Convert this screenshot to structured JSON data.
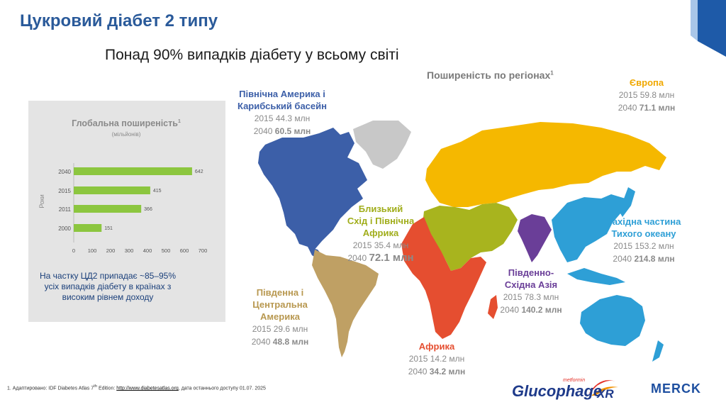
{
  "title": "Цукровий діабет 2 типу",
  "subtitle": "Понад 90% випадків діабету у всьому світі",
  "regions_title": "Поширеність по регіонах",
  "regions_title_sup": "1",
  "chart_data": {
    "type": "bar",
    "orientation": "horizontal",
    "title": "Глобальна поширеність",
    "title_sup": "1",
    "subtitle": "(мільйонів)",
    "ylabel": "Роки",
    "categories": [
      "2040",
      "2015",
      "2011",
      "2000"
    ],
    "values": [
      642,
      415,
      366,
      151
    ],
    "xlim": [
      0,
      700
    ],
    "xticks": [
      "0",
      "100",
      "200",
      "300",
      "400",
      "500",
      "600",
      "700"
    ],
    "bar_color": "#8cc63f"
  },
  "note": "На частку ЦД2 припадає ~85–95% усіх випадків діабету в країнах з високим рівнем доходу",
  "regions": {
    "north_america": {
      "name_line1": "Північна Америка і",
      "name_line2": "Карибський басейн",
      "y2015": "2015 44.3 млн",
      "y2040_prefix": "2040",
      "y2040_value": "60.5 млн",
      "color": "#3c5fa8"
    },
    "europe": {
      "name_line1": "Європа",
      "y2015": "2015 59.8 млн",
      "y2040_prefix": "2040",
      "y2040_value": "71.1 млн",
      "color": "#f5b800"
    },
    "middle_east": {
      "name_line1": "Близький",
      "name_line2": "Схід і Північна",
      "name_line3": "Африка",
      "y2015": "2015 35.4 млн",
      "y2040_prefix": "2040",
      "y2040_value": "72.1 млн",
      "color": "#a8b41e"
    },
    "western_pacific": {
      "name_line1": "Західна частина",
      "name_line2": "Тихого океану",
      "y2015": "2015 153.2 млн",
      "y2040_prefix": "2040",
      "y2040_value": "214.8 млн",
      "color": "#2e9fd6"
    },
    "south_east_asia": {
      "name_line1": "Південно-",
      "name_line2": "Східна Азія",
      "y2015": "2015 78.3 млн",
      "y2040_prefix": "2040",
      "y2040_value": "140.2 млн",
      "color": "#6a3e98"
    },
    "south_america": {
      "name_line1": "Південна і",
      "name_line2": "Центральна",
      "name_line3": "Америка",
      "y2015": "2015 29.6 млн",
      "y2040_prefix": "2040",
      "y2040_value": "48.8 млн",
      "color": "#bfa064"
    },
    "africa": {
      "name_line1": "Африка",
      "y2015": "2015 14.2 млн",
      "y2040_prefix": "2040",
      "y2040_value": "34.2 млн",
      "color": "#e54e30"
    }
  },
  "footer": {
    "prefix": "1. Адаптировано: IDF Diabetes Atlas 7",
    "sup": "th",
    "middle": " Edition: ",
    "link": "http://www.diabetesatlas.org",
    "suffix": ", дата останнього доступу 01.07. 2025"
  },
  "logos": {
    "glucophage": "Glucophage",
    "glucophage_suffix": "XR",
    "glucophage_small": "metformin",
    "merck": "MERCK"
  }
}
